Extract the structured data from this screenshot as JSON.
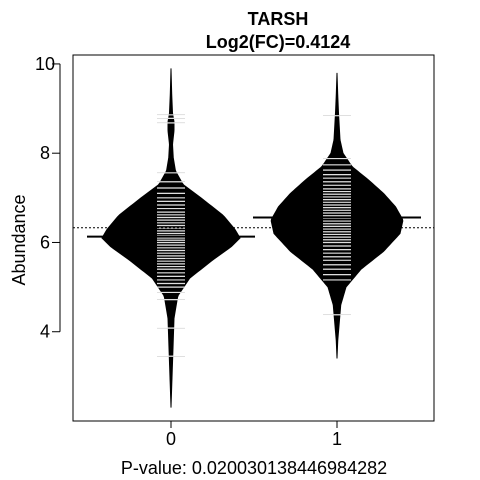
{
  "chart_data": {
    "type": "beanplot",
    "title": "TARSH",
    "subtitle": "Log2(FC)=0.4124",
    "xlabel": "P-value: 0.020030138446984282",
    "ylabel": "Abundance",
    "categories": [
      "0",
      "1"
    ],
    "x_ticks": [
      "0",
      "1"
    ],
    "y_ticks": [
      4,
      6,
      8,
      10
    ],
    "ylim": [
      2.0,
      10.2
    ],
    "grid": false,
    "overall_mean": 6.33,
    "colors": {
      "fill": "#000000",
      "line": "#ffffff",
      "border": "#000000",
      "background": "#ffffff"
    },
    "series": [
      {
        "category": "0",
        "mean": 6.13,
        "density": [
          [
            2.3,
            0.0
          ],
          [
            2.8,
            0.01
          ],
          [
            3.3,
            0.02
          ],
          [
            3.8,
            0.03
          ],
          [
            4.3,
            0.04
          ],
          [
            4.8,
            0.09
          ],
          [
            5.2,
            0.25
          ],
          [
            5.6,
            0.55
          ],
          [
            5.9,
            0.8
          ],
          [
            6.1,
            0.92
          ],
          [
            6.3,
            0.85
          ],
          [
            6.6,
            0.7
          ],
          [
            7.0,
            0.4
          ],
          [
            7.3,
            0.16
          ],
          [
            7.6,
            0.06
          ],
          [
            7.9,
            0.03
          ],
          [
            8.2,
            0.02
          ],
          [
            8.5,
            0.04
          ],
          [
            8.7,
            0.04
          ],
          [
            8.9,
            0.02
          ],
          [
            9.3,
            0.01
          ],
          [
            9.9,
            0.0
          ]
        ],
        "points": [
          3.45,
          4.08,
          4.72,
          4.88,
          5.0,
          5.08,
          5.16,
          5.24,
          5.32,
          5.4,
          5.46,
          5.52,
          5.58,
          5.64,
          5.7,
          5.76,
          5.82,
          5.88,
          5.94,
          6.0,
          6.05,
          6.1,
          6.15,
          6.2,
          6.26,
          6.32,
          6.38,
          6.44,
          6.5,
          6.56,
          6.62,
          6.68,
          6.76,
          6.84,
          6.92,
          7.0,
          7.1,
          7.22,
          7.36,
          7.56,
          8.68,
          8.78,
          8.86
        ]
      },
      {
        "category": "1",
        "mean": 6.56,
        "density": [
          [
            3.4,
            0.0
          ],
          [
            3.8,
            0.01
          ],
          [
            4.2,
            0.03
          ],
          [
            4.6,
            0.05
          ],
          [
            5.0,
            0.12
          ],
          [
            5.4,
            0.32
          ],
          [
            5.8,
            0.62
          ],
          [
            6.2,
            0.84
          ],
          [
            6.5,
            0.88
          ],
          [
            6.8,
            0.78
          ],
          [
            7.1,
            0.62
          ],
          [
            7.4,
            0.42
          ],
          [
            7.7,
            0.2
          ],
          [
            8.0,
            0.08
          ],
          [
            8.3,
            0.04
          ],
          [
            8.6,
            0.03
          ],
          [
            8.9,
            0.02
          ],
          [
            9.3,
            0.01
          ],
          [
            9.8,
            0.0
          ]
        ],
        "points": [
          4.38,
          5.16,
          5.28,
          5.4,
          5.5,
          5.6,
          5.68,
          5.76,
          5.84,
          5.92,
          6.0,
          6.06,
          6.12,
          6.18,
          6.24,
          6.3,
          6.36,
          6.42,
          6.48,
          6.54,
          6.6,
          6.66,
          6.72,
          6.78,
          6.84,
          6.9,
          6.96,
          7.02,
          7.08,
          7.14,
          7.2,
          7.28,
          7.36,
          7.44,
          7.52,
          7.62,
          7.74,
          7.88,
          8.84
        ]
      }
    ]
  }
}
